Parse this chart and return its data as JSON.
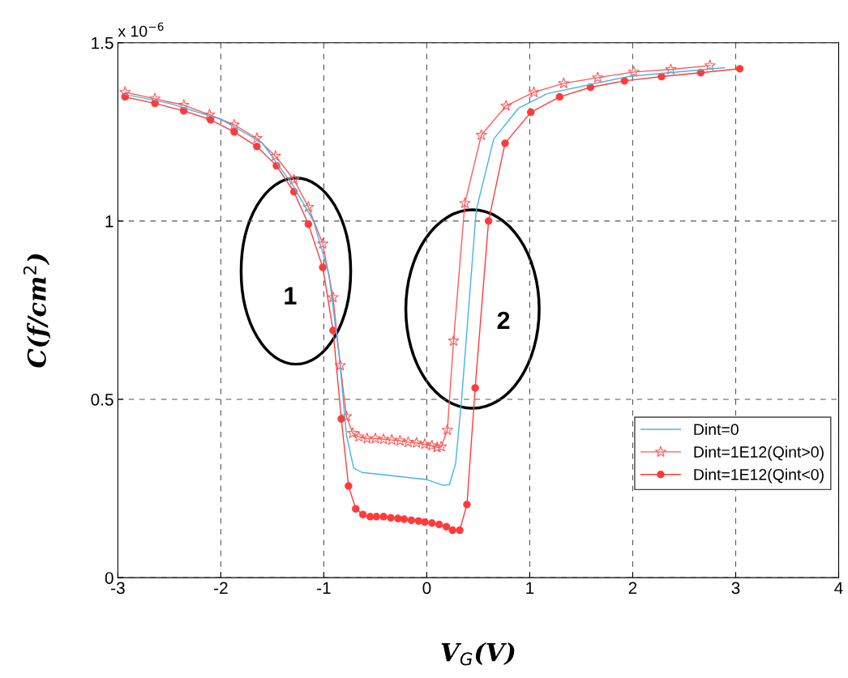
{
  "chart_data": {
    "type": "line",
    "xlabel": "V$_{G}$(V)",
    "ylabel": "C(f/cm$^{2}$)",
    "xlim": [
      -3,
      4
    ],
    "xticks": [
      -3,
      -2,
      -1,
      0,
      1,
      2,
      3,
      4
    ],
    "ylim": [
      0,
      1.5
    ],
    "yticks": [
      0,
      0.5,
      1,
      1.5
    ],
    "grid": true,
    "legend": "bottom right",
    "annotations": [
      "x 10$^{−6}$",
      "1",
      "2"
    ],
    "series": [
      {
        "name": "Dint=0",
        "color": "#45b4e6",
        "marker": "none",
        "x": [
          -2.93,
          -2.5,
          -2.0,
          -1.6,
          -1.3,
          -1.1,
          -0.95,
          -0.85,
          -0.78,
          -0.71,
          -0.63,
          -0.37,
          0.0,
          0.16,
          0.22,
          0.28,
          0.34,
          0.48,
          0.65,
          0.89,
          1.17,
          1.95,
          2.89
        ],
        "values": [
          1.355,
          1.33,
          1.285,
          1.22,
          1.1,
          1.0,
          0.85,
          0.62,
          0.4,
          0.307,
          0.295,
          0.287,
          0.275,
          0.259,
          0.261,
          0.32,
          0.507,
          1.03,
          1.23,
          1.316,
          1.357,
          1.405,
          1.43
        ]
      },
      {
        "name": "Dint=1E12(Qint>0)",
        "color": "#ff5a5a",
        "marker": "star",
        "x": [
          -2.93,
          -2.64,
          -2.36,
          -2.11,
          -1.87,
          -1.65,
          -1.47,
          -1.29,
          -1.15,
          -1.01,
          -0.91,
          -0.84,
          -0.78,
          -0.72,
          -0.66,
          -0.58,
          -0.5,
          -0.42,
          -0.34,
          -0.26,
          -0.18,
          -0.1,
          -0.02,
          0.05,
          0.1,
          0.14,
          0.2,
          0.26,
          0.37,
          0.53,
          0.77,
          1.04,
          1.33,
          1.66,
          2.01,
          2.37,
          2.75
        ],
        "values": [
          1.361,
          1.343,
          1.325,
          1.298,
          1.27,
          1.232,
          1.182,
          1.116,
          1.039,
          0.936,
          0.786,
          0.595,
          0.452,
          0.405,
          0.395,
          0.39,
          0.39,
          0.388,
          0.386,
          0.384,
          0.38,
          0.378,
          0.374,
          0.37,
          0.365,
          0.367,
          0.414,
          0.664,
          1.05,
          1.241,
          1.323,
          1.361,
          1.386,
          1.402,
          1.418,
          1.425,
          1.436
        ]
      },
      {
        "name": "Dint=1E12(Qint<0)",
        "color": "#ff3b3b",
        "marker": "circle",
        "x": [
          -2.93,
          -2.64,
          -2.36,
          -2.1,
          -1.87,
          -1.65,
          -1.46,
          -1.29,
          -1.15,
          -1.01,
          -0.91,
          -0.83,
          -0.76,
          -0.69,
          -0.62,
          -0.55,
          -0.49,
          -0.42,
          -0.35,
          -0.28,
          -0.22,
          -0.15,
          -0.08,
          -0.02,
          0.05,
          0.12,
          0.19,
          0.25,
          0.32,
          0.39,
          0.47,
          0.6,
          0.76,
          1.01,
          1.29,
          1.59,
          1.92,
          2.28,
          2.66,
          3.04
        ],
        "values": [
          1.348,
          1.33,
          1.309,
          1.284,
          1.25,
          1.209,
          1.155,
          1.082,
          0.991,
          0.87,
          0.693,
          0.445,
          0.257,
          0.193,
          0.177,
          0.171,
          0.171,
          0.171,
          0.168,
          0.166,
          0.164,
          0.161,
          0.159,
          0.156,
          0.153,
          0.149,
          0.143,
          0.133,
          0.133,
          0.205,
          0.532,
          1.0,
          1.218,
          1.305,
          1.348,
          1.375,
          1.393,
          1.405,
          1.416,
          1.427
        ]
      }
    ]
  }
}
